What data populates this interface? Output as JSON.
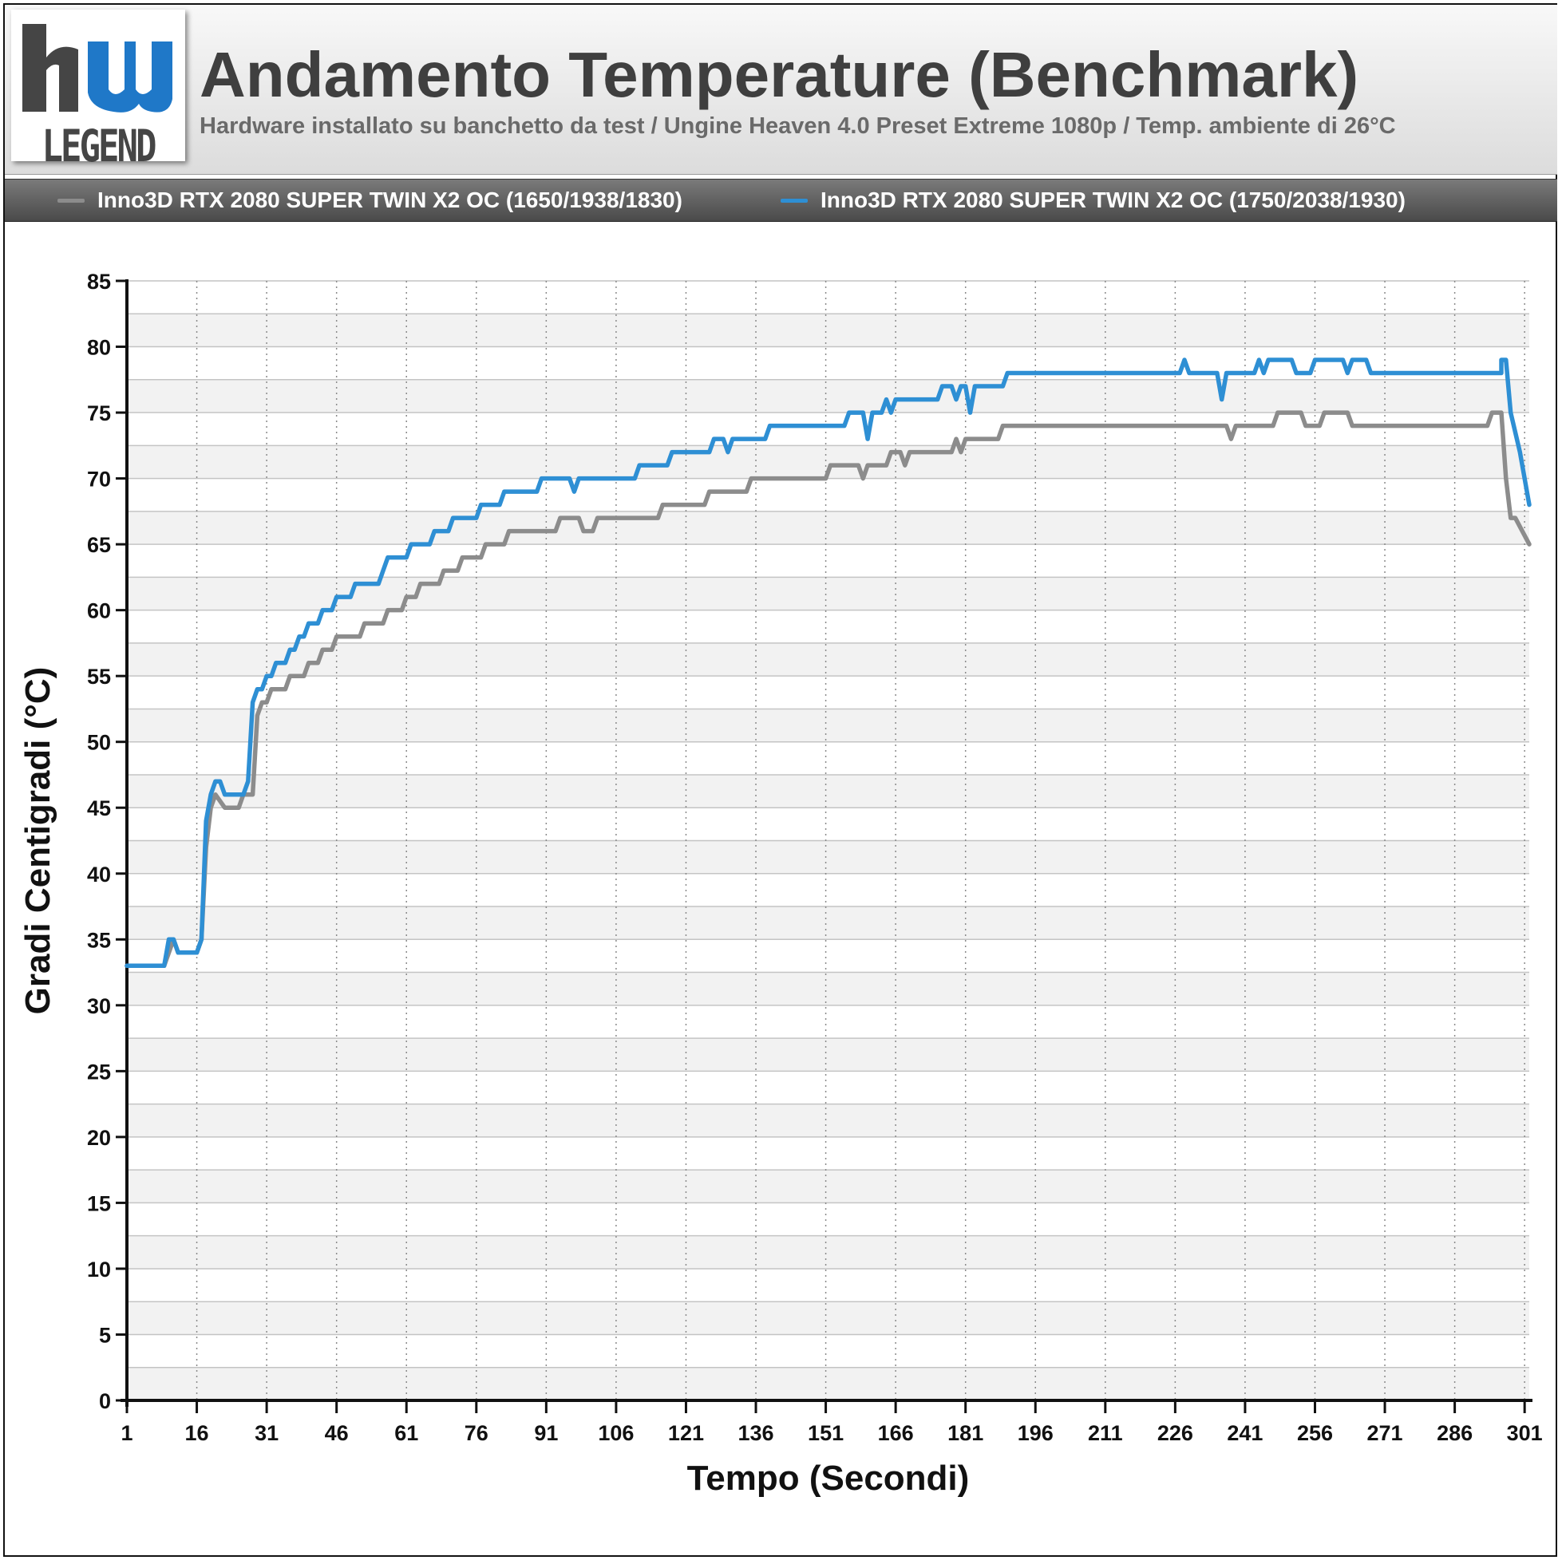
{
  "header": {
    "logo_text": "LEGEND",
    "title": "Andamento Temperature (Benchmark)",
    "subtitle": "Hardware installato su banchetto da test / Ungine Heaven 4.0 Preset Extreme 1080p / Temp. ambiente di 26°C"
  },
  "colors": {
    "gray_series": "#8c8c8c",
    "blue_series": "#2e8fd4",
    "logo_blue": "#1f78c8"
  },
  "chart_data": {
    "type": "line",
    "title": "Andamento Temperature (Benchmark)",
    "xlabel": "Tempo (Secondi)",
    "ylabel": "Gradi Centigradi (°C)",
    "xlim": [
      1,
      302
    ],
    "ylim": [
      0,
      85
    ],
    "y_ticks": [
      0,
      5,
      10,
      15,
      20,
      25,
      30,
      35,
      40,
      45,
      50,
      55,
      60,
      65,
      70,
      75,
      80,
      85
    ],
    "x_ticks": [
      1,
      16,
      31,
      46,
      61,
      76,
      91,
      106,
      121,
      136,
      151,
      166,
      181,
      196,
      211,
      226,
      241,
      256,
      271,
      286,
      301
    ],
    "grid": true,
    "legend_position": "top",
    "series": [
      {
        "name": "Inno3D RTX 2080 SUPER TWIN X2 OC (1650/1938/1830)",
        "color": "#8c8c8c",
        "points": [
          [
            1,
            33
          ],
          [
            9,
            33
          ],
          [
            11,
            35
          ],
          [
            12,
            34
          ],
          [
            16,
            34
          ],
          [
            17,
            35
          ],
          [
            18,
            42
          ],
          [
            19,
            45
          ],
          [
            20,
            46
          ],
          [
            22,
            45
          ],
          [
            25,
            45
          ],
          [
            26,
            46
          ],
          [
            28,
            46
          ],
          [
            29,
            52
          ],
          [
            30,
            53
          ],
          [
            31,
            53
          ],
          [
            32,
            54
          ],
          [
            35,
            54
          ],
          [
            36,
            55
          ],
          [
            39,
            55
          ],
          [
            40,
            56
          ],
          [
            42,
            56
          ],
          [
            43,
            57
          ],
          [
            45,
            57
          ],
          [
            46,
            58
          ],
          [
            51,
            58
          ],
          [
            52,
            59
          ],
          [
            56,
            59
          ],
          [
            57,
            60
          ],
          [
            60,
            60
          ],
          [
            61,
            61
          ],
          [
            63,
            61
          ],
          [
            64,
            62
          ],
          [
            68,
            62
          ],
          [
            69,
            63
          ],
          [
            72,
            63
          ],
          [
            73,
            64
          ],
          [
            77,
            64
          ],
          [
            78,
            65
          ],
          [
            82,
            65
          ],
          [
            83,
            66
          ],
          [
            93,
            66
          ],
          [
            94,
            67
          ],
          [
            98,
            67
          ],
          [
            99,
            66
          ],
          [
            101,
            66
          ],
          [
            102,
            67
          ],
          [
            115,
            67
          ],
          [
            116,
            68
          ],
          [
            125,
            68
          ],
          [
            126,
            69
          ],
          [
            134,
            69
          ],
          [
            135,
            70
          ],
          [
            151,
            70
          ],
          [
            152,
            71
          ],
          [
            158,
            71
          ],
          [
            159,
            70
          ],
          [
            160,
            71
          ],
          [
            164,
            71
          ],
          [
            165,
            72
          ],
          [
            167,
            72
          ],
          [
            168,
            71
          ],
          [
            169,
            72
          ],
          [
            178,
            72
          ],
          [
            179,
            73
          ],
          [
            180,
            72
          ],
          [
            181,
            73
          ],
          [
            188,
            73
          ],
          [
            189,
            74
          ],
          [
            237,
            74
          ],
          [
            238,
            73
          ],
          [
            239,
            74
          ],
          [
            247,
            74
          ],
          [
            248,
            75
          ],
          [
            253,
            75
          ],
          [
            254,
            74
          ],
          [
            257,
            74
          ],
          [
            258,
            75
          ],
          [
            263,
            75
          ],
          [
            264,
            74
          ],
          [
            293,
            74
          ],
          [
            294,
            75
          ],
          [
            296,
            75
          ],
          [
            297,
            70
          ],
          [
            298,
            67
          ],
          [
            299,
            67
          ],
          [
            302,
            65
          ]
        ]
      },
      {
        "name": "Inno3D RTX 2080 SUPER TWIN X2 OC (1750/2038/1930)",
        "color": "#2e8fd4",
        "points": [
          [
            1,
            33
          ],
          [
            9,
            33
          ],
          [
            10,
            35
          ],
          [
            11,
            35
          ],
          [
            12,
            34
          ],
          [
            16,
            34
          ],
          [
            17,
            35
          ],
          [
            18,
            44
          ],
          [
            19,
            46
          ],
          [
            20,
            47
          ],
          [
            21,
            47
          ],
          [
            22,
            46
          ],
          [
            26,
            46
          ],
          [
            27,
            47
          ],
          [
            28,
            53
          ],
          [
            29,
            54
          ],
          [
            30,
            54
          ],
          [
            31,
            55
          ],
          [
            32,
            55
          ],
          [
            33,
            56
          ],
          [
            35,
            56
          ],
          [
            36,
            57
          ],
          [
            37,
            57
          ],
          [
            38,
            58
          ],
          [
            39,
            58
          ],
          [
            40,
            59
          ],
          [
            42,
            59
          ],
          [
            43,
            60
          ],
          [
            45,
            60
          ],
          [
            46,
            61
          ],
          [
            49,
            61
          ],
          [
            50,
            62
          ],
          [
            55,
            62
          ],
          [
            56,
            63
          ],
          [
            57,
            64
          ],
          [
            61,
            64
          ],
          [
            62,
            65
          ],
          [
            66,
            65
          ],
          [
            67,
            66
          ],
          [
            70,
            66
          ],
          [
            71,
            67
          ],
          [
            76,
            67
          ],
          [
            77,
            68
          ],
          [
            81,
            68
          ],
          [
            82,
            69
          ],
          [
            89,
            69
          ],
          [
            90,
            70
          ],
          [
            96,
            70
          ],
          [
            97,
            69
          ],
          [
            98,
            70
          ],
          [
            110,
            70
          ],
          [
            111,
            71
          ],
          [
            117,
            71
          ],
          [
            118,
            72
          ],
          [
            126,
            72
          ],
          [
            127,
            73
          ],
          [
            129,
            73
          ],
          [
            130,
            72
          ],
          [
            131,
            73
          ],
          [
            138,
            73
          ],
          [
            139,
            74
          ],
          [
            155,
            74
          ],
          [
            156,
            75
          ],
          [
            159,
            75
          ],
          [
            160,
            73
          ],
          [
            161,
            75
          ],
          [
            163,
            75
          ],
          [
            164,
            76
          ],
          [
            165,
            75
          ],
          [
            166,
            76
          ],
          [
            175,
            76
          ],
          [
            176,
            77
          ],
          [
            178,
            77
          ],
          [
            179,
            76
          ],
          [
            180,
            77
          ],
          [
            181,
            77
          ],
          [
            182,
            75
          ],
          [
            183,
            77
          ],
          [
            189,
            77
          ],
          [
            190,
            78
          ],
          [
            227,
            78
          ],
          [
            228,
            79
          ],
          [
            229,
            78
          ],
          [
            235,
            78
          ],
          [
            236,
            76
          ],
          [
            237,
            78
          ],
          [
            243,
            78
          ],
          [
            244,
            79
          ],
          [
            245,
            78
          ],
          [
            246,
            79
          ],
          [
            251,
            79
          ],
          [
            252,
            78
          ],
          [
            255,
            78
          ],
          [
            256,
            79
          ],
          [
            262,
            79
          ],
          [
            263,
            78
          ],
          [
            264,
            79
          ],
          [
            267,
            79
          ],
          [
            268,
            78
          ],
          [
            296,
            78
          ],
          [
            296,
            79
          ],
          [
            297,
            79
          ],
          [
            298,
            75
          ],
          [
            300,
            72
          ],
          [
            302,
            68
          ]
        ]
      }
    ]
  }
}
